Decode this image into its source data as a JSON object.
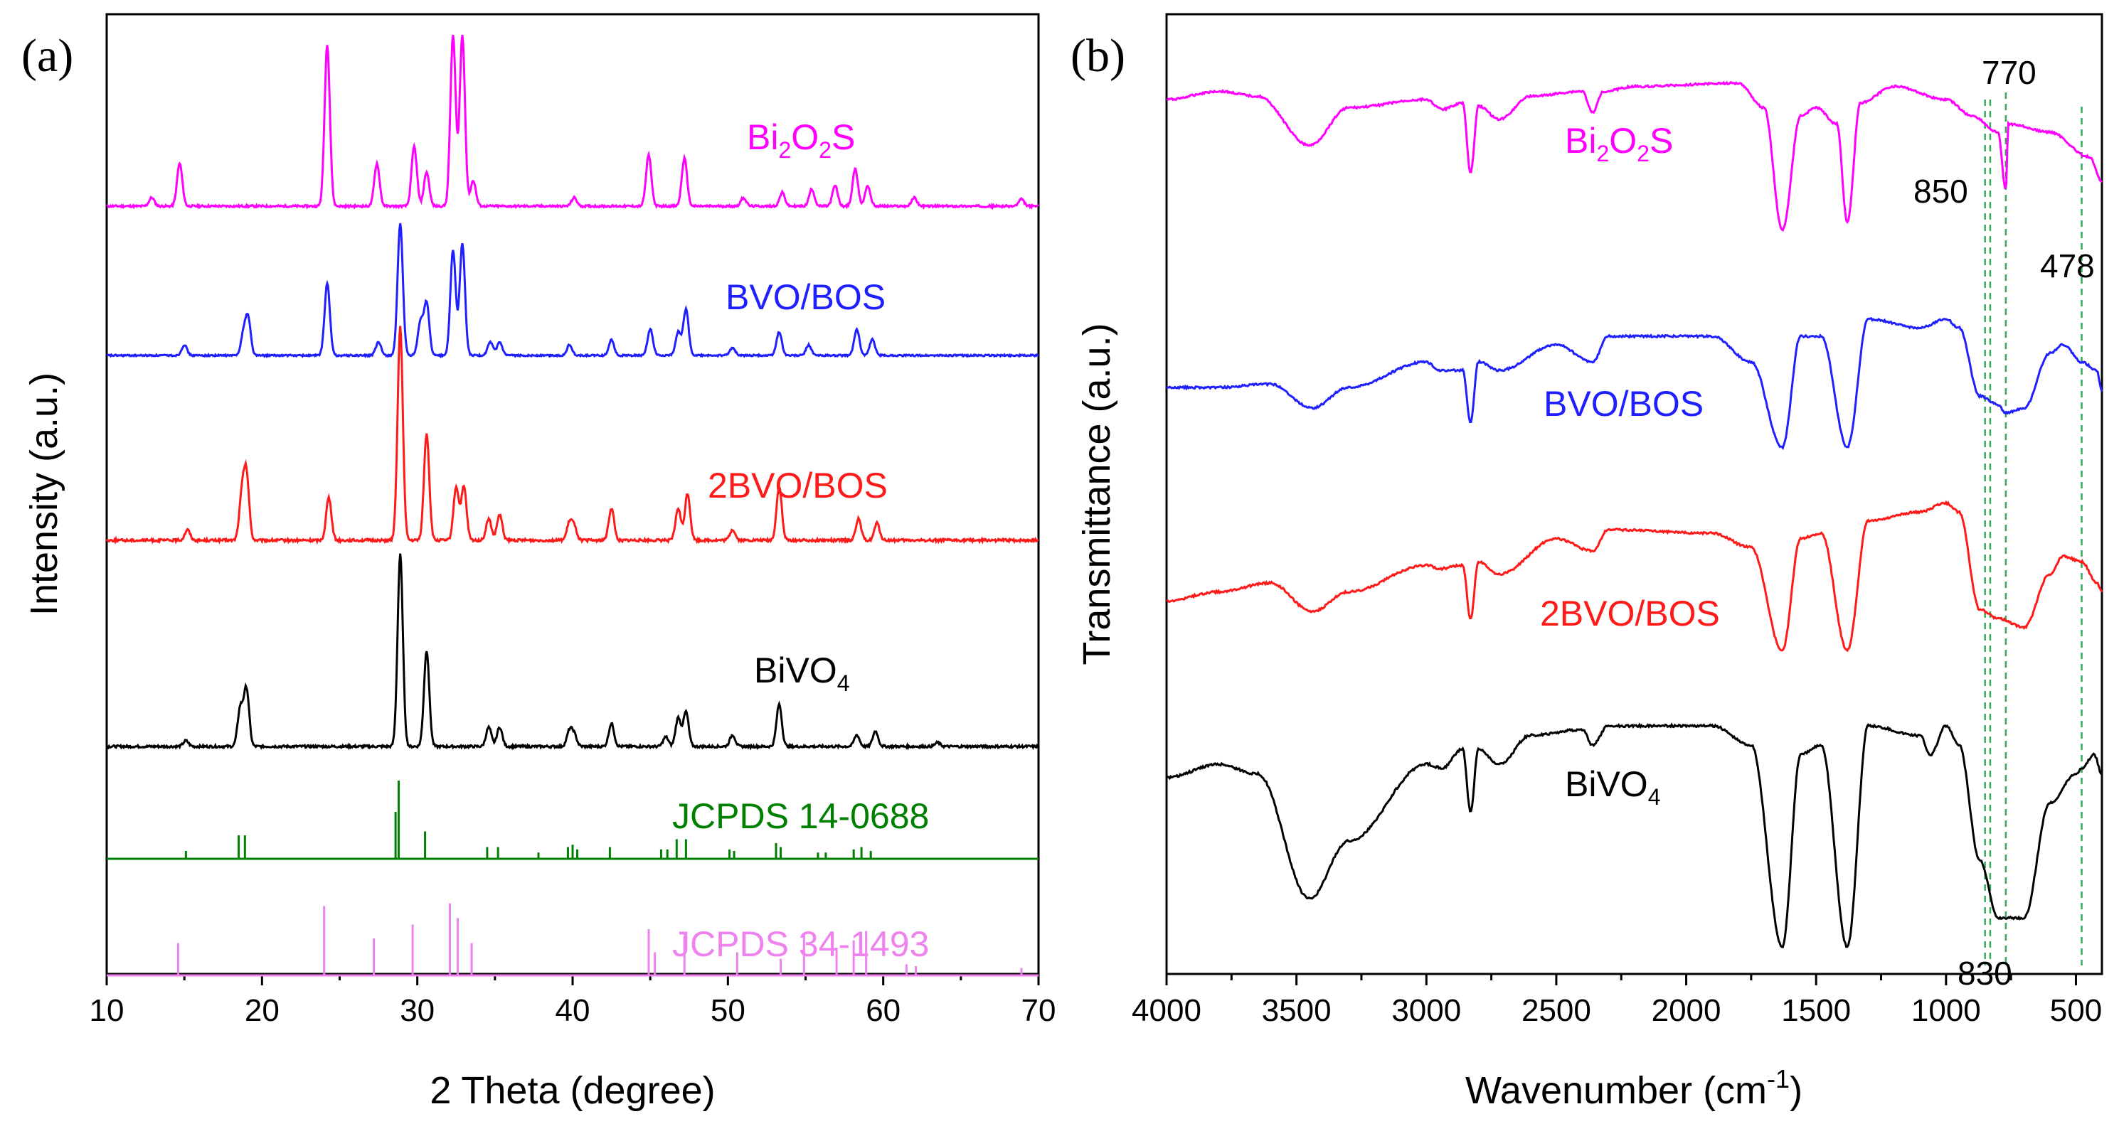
{
  "chart_data": [
    {
      "panel": "(a)",
      "type": "line",
      "xlabel": "2 Theta (degree)",
      "ylabel": "Intensity (a.u.)",
      "xlim": [
        10,
        70
      ],
      "xticks": [
        "10",
        "20",
        "30",
        "40",
        "50",
        "60",
        "70"
      ],
      "series": [
        {
          "name": "Bi2O2S",
          "label_main": "Bi",
          "label_parts": [
            "2",
            "O",
            "2",
            "S"
          ],
          "color": "#ff00ff",
          "peaks": [
            [
              12.9,
              0.05
            ],
            [
              14.7,
              0.25
            ],
            [
              24.2,
              0.95
            ],
            [
              27.4,
              0.25
            ],
            [
              29.8,
              0.35
            ],
            [
              30.6,
              0.2
            ],
            [
              32.3,
              1.0
            ],
            [
              32.9,
              1.0
            ],
            [
              33.6,
              0.15
            ],
            [
              40.1,
              0.05
            ],
            [
              44.9,
              0.3
            ],
            [
              47.2,
              0.28
            ],
            [
              51.0,
              0.05
            ],
            [
              53.5,
              0.08
            ],
            [
              55.4,
              0.1
            ],
            [
              56.9,
              0.12
            ],
            [
              58.2,
              0.22
            ],
            [
              59.0,
              0.12
            ],
            [
              62.0,
              0.05
            ],
            [
              68.9,
              0.04
            ]
          ]
        },
        {
          "name": "BVO/BOS",
          "color": "#1f1fff",
          "peaks": [
            [
              15.0,
              0.08
            ],
            [
              18.8,
              0.15
            ],
            [
              19.1,
              0.28
            ],
            [
              24.2,
              0.55
            ],
            [
              27.5,
              0.1
            ],
            [
              28.9,
              1.0
            ],
            [
              30.2,
              0.25
            ],
            [
              30.6,
              0.4
            ],
            [
              32.3,
              0.8
            ],
            [
              32.9,
              0.85
            ],
            [
              34.7,
              0.1
            ],
            [
              35.3,
              0.1
            ],
            [
              39.8,
              0.08
            ],
            [
              42.5,
              0.12
            ],
            [
              45.0,
              0.2
            ],
            [
              46.8,
              0.18
            ],
            [
              47.3,
              0.35
            ],
            [
              50.3,
              0.06
            ],
            [
              53.3,
              0.18
            ],
            [
              55.2,
              0.08
            ],
            [
              58.3,
              0.2
            ],
            [
              59.3,
              0.12
            ]
          ]
        },
        {
          "name": "2BVO/BOS",
          "color": "#ff1a1a",
          "peaks": [
            [
              15.2,
              0.05
            ],
            [
              18.7,
              0.2
            ],
            [
              19.0,
              0.3
            ],
            [
              24.3,
              0.2
            ],
            [
              28.9,
              1.0
            ],
            [
              30.6,
              0.5
            ],
            [
              32.5,
              0.25
            ],
            [
              33.0,
              0.25
            ],
            [
              34.6,
              0.1
            ],
            [
              35.3,
              0.12
            ],
            [
              39.8,
              0.08
            ],
            [
              40.1,
              0.06
            ],
            [
              42.5,
              0.15
            ],
            [
              46.8,
              0.15
            ],
            [
              47.4,
              0.22
            ],
            [
              50.3,
              0.05
            ],
            [
              53.3,
              0.25
            ],
            [
              58.4,
              0.1
            ],
            [
              59.6,
              0.08
            ]
          ]
        },
        {
          "name": "BiVO4",
          "label_main": "BiVO",
          "label_parts": [
            "4"
          ],
          "color": "#000000",
          "peaks": [
            [
              15.1,
              0.03
            ],
            [
              18.6,
              0.2
            ],
            [
              19.0,
              0.3
            ],
            [
              28.9,
              1.0
            ],
            [
              30.6,
              0.5
            ],
            [
              34.6,
              0.1
            ],
            [
              35.3,
              0.1
            ],
            [
              39.8,
              0.08
            ],
            [
              40.1,
              0.06
            ],
            [
              42.5,
              0.12
            ],
            [
              46.0,
              0.05
            ],
            [
              46.8,
              0.15
            ],
            [
              47.3,
              0.18
            ],
            [
              50.3,
              0.06
            ],
            [
              53.3,
              0.22
            ],
            [
              58.3,
              0.06
            ],
            [
              59.5,
              0.08
            ],
            [
              63.5,
              0.02
            ]
          ]
        }
      ],
      "references": [
        {
          "name": "JCPDS 14-0688",
          "color": "#008000",
          "sticks": [
            [
              15.1,
              0.1
            ],
            [
              18.5,
              0.3
            ],
            [
              18.9,
              0.3
            ],
            [
              28.6,
              0.6
            ],
            [
              28.8,
              1.0
            ],
            [
              30.5,
              0.35
            ],
            [
              34.5,
              0.15
            ],
            [
              35.2,
              0.15
            ],
            [
              37.8,
              0.08
            ],
            [
              39.7,
              0.15
            ],
            [
              40.0,
              0.18
            ],
            [
              40.3,
              0.12
            ],
            [
              42.4,
              0.15
            ],
            [
              45.7,
              0.12
            ],
            [
              46.1,
              0.12
            ],
            [
              46.7,
              0.25
            ],
            [
              47.3,
              0.25
            ],
            [
              50.1,
              0.12
            ],
            [
              50.4,
              0.1
            ],
            [
              53.1,
              0.2
            ],
            [
              53.4,
              0.15
            ],
            [
              55.8,
              0.08
            ],
            [
              56.3,
              0.08
            ],
            [
              58.1,
              0.12
            ],
            [
              58.6,
              0.15
            ],
            [
              59.2,
              0.1
            ]
          ]
        },
        {
          "name": "JCPDS 34-1493",
          "color": "#ee82ee",
          "sticks": [
            [
              14.6,
              0.35
            ],
            [
              24.0,
              0.75
            ],
            [
              27.2,
              0.4
            ],
            [
              29.7,
              0.55
            ],
            [
              32.1,
              0.78
            ],
            [
              32.6,
              0.62
            ],
            [
              33.5,
              0.35
            ],
            [
              44.9,
              0.5
            ],
            [
              45.3,
              0.25
            ],
            [
              47.2,
              0.42
            ],
            [
              50.6,
              0.25
            ],
            [
              53.4,
              0.18
            ],
            [
              54.9,
              0.45
            ],
            [
              57.0,
              0.3
            ],
            [
              58.1,
              0.38
            ],
            [
              58.9,
              0.48
            ],
            [
              61.5,
              0.12
            ],
            [
              62.1,
              0.1
            ],
            [
              68.9,
              0.08
            ]
          ]
        }
      ]
    },
    {
      "panel": "(b)",
      "type": "line",
      "xlabel_main": "Wavenumber (cm",
      "xlabel_sup": "-1",
      "xlabel_end": ")",
      "ylabel": "Transmittance (a.u.)",
      "xlim": [
        4000,
        400
      ],
      "xticks": [
        "4000",
        "3500",
        "3000",
        "2500",
        "2000",
        "1500",
        "1000",
        "500"
      ],
      "annotations": [
        "770",
        "850",
        "478",
        "830"
      ],
      "reference_lines": [
        850,
        830,
        770,
        478
      ],
      "series": [
        {
          "name": "Bi2O2S",
          "label_main": "Bi",
          "label_parts": [
            "2",
            "O",
            "2",
            "S"
          ],
          "color": "#ff00ff"
        },
        {
          "name": "BVO/BOS",
          "color": "#1f1fff"
        },
        {
          "name": "2BVO/BOS",
          "color": "#ff1a1a"
        },
        {
          "name": "BiVO4",
          "label_main": "BiVO",
          "label_parts": [
            "4"
          ],
          "color": "#000000"
        }
      ]
    }
  ]
}
